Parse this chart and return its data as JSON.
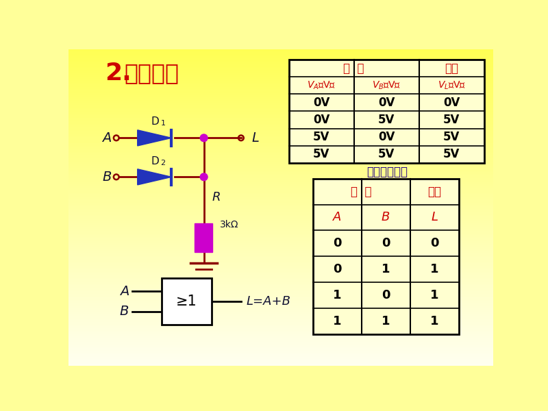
{
  "title_num": "2.",
  "title_text": "或门电路",
  "title_color": "#CC0000",
  "circuit_wire_color": "#8B0000",
  "diode_color": "#2233BB",
  "resistor_color": "#CC00CC",
  "node_color": "#CC00CC",
  "label_color": "#111133",
  "table1_header_color": "#CC0000",
  "table1_data": [
    [
      "0V",
      "0V",
      "0V"
    ],
    [
      "0V",
      "5V",
      "5V"
    ],
    [
      "5V",
      "0V",
      "5V"
    ],
    [
      "5V",
      "5V",
      "5V"
    ]
  ],
  "table2_title": "或逻辑真值表",
  "table2_title_color": "#220088",
  "table2_header_color": "#CC0000",
  "table2_data": [
    [
      "0",
      "0",
      "0"
    ],
    [
      "0",
      "1",
      "1"
    ],
    [
      "1",
      "0",
      "1"
    ],
    [
      "1",
      "1",
      "1"
    ]
  ]
}
